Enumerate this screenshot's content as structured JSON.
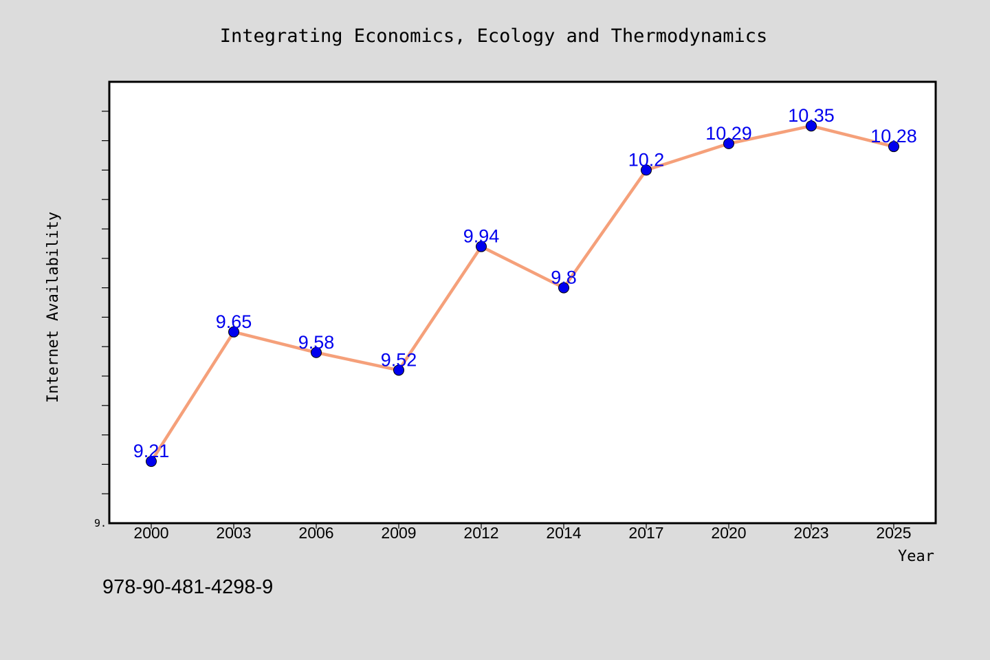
{
  "chart_data": {
    "type": "line",
    "title": "Integrating Economics, Ecology and Thermodynamics",
    "xlabel": "Year",
    "ylabel": "Internet Availability",
    "categories": [
      "2000",
      "2003",
      "2006",
      "2009",
      "2012",
      "2014",
      "2017",
      "2020",
      "2023",
      "2025"
    ],
    "series": [
      {
        "values": [
          9.21,
          9.65,
          9.58,
          9.52,
          9.94,
          9.8,
          10.2,
          10.29,
          10.35,
          10.28
        ],
        "data_labels": [
          "9.21",
          "9.65",
          "9.58",
          "9.52",
          "9.94",
          "9.8",
          "10.2",
          "10.29",
          "10.35",
          "10.28"
        ]
      }
    ],
    "ylim": [
      9.0,
      10.5
    ],
    "ytick_label": "9.",
    "grid": false,
    "legend": "none",
    "line_color": "#f5a07a",
    "marker_color": "#0000ee",
    "label_color": "#0000ee",
    "plot_background": "#ffffff",
    "figure_background": "#dcdcdc"
  },
  "footer": {
    "isbn": "978-90-481-4298-9"
  }
}
